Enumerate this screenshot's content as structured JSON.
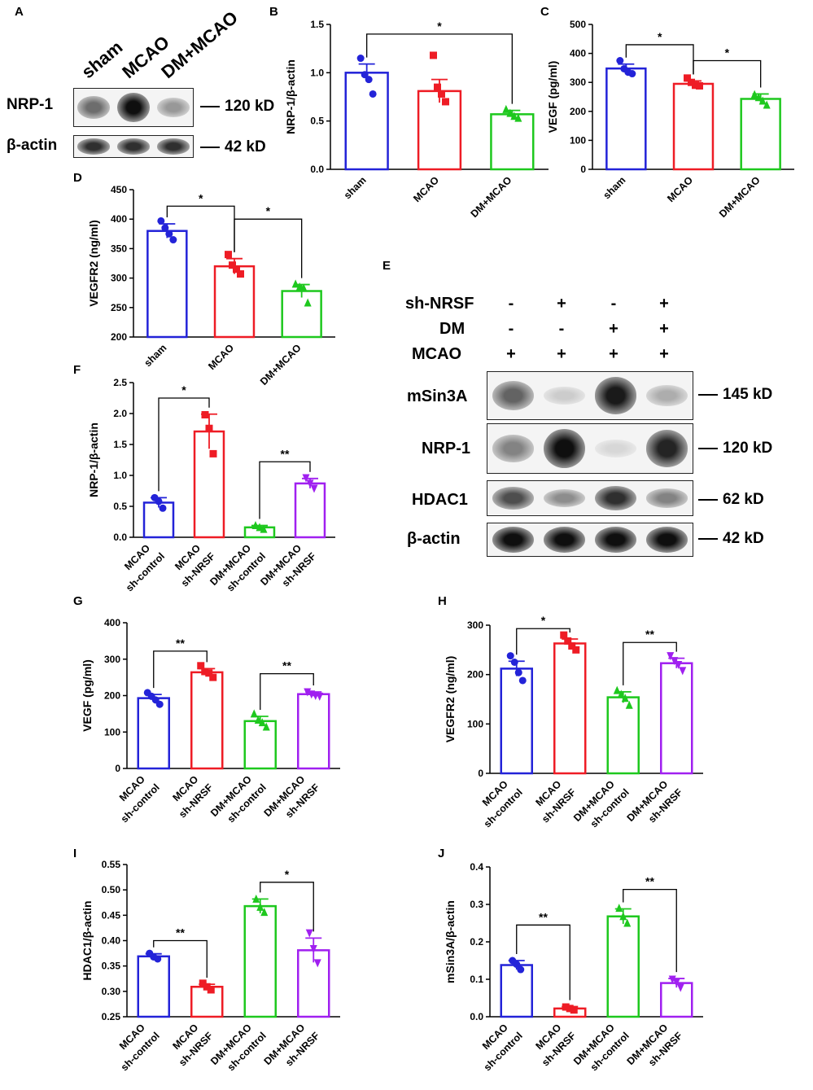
{
  "panel_letters": {
    "A": "A",
    "B": "B",
    "C": "C",
    "D": "D",
    "E": "E",
    "F": "F",
    "G": "G",
    "H": "H",
    "I": "I",
    "J": "J"
  },
  "panel_A": {
    "lanes": [
      "sham",
      "MCAO",
      "DM+MCAO"
    ],
    "rows": [
      {
        "label": "NRP-1",
        "size": "120 kD",
        "bands": [
          0.55,
          1.0,
          0.35
        ]
      },
      {
        "label": "β-actin",
        "size": "42 kD",
        "bands": [
          0.85,
          0.85,
          0.85
        ]
      }
    ]
  },
  "panel_E": {
    "conditions": [
      {
        "label": "sh-NRSF",
        "signs": [
          "-",
          "+",
          "-",
          "+"
        ]
      },
      {
        "label": "DM",
        "signs": [
          "-",
          "-",
          "+",
          "+"
        ]
      },
      {
        "label": "MCAO",
        "signs": [
          "+",
          "+",
          "+",
          "+"
        ]
      }
    ],
    "rows": [
      {
        "label": "mSin3A",
        "size": "145 kD",
        "bands": [
          0.6,
          0.1,
          0.95,
          0.25
        ]
      },
      {
        "label": "NRP-1",
        "size": "120 kD",
        "bands": [
          0.45,
          1.0,
          0.05,
          0.9
        ]
      },
      {
        "label": "HDAC1",
        "size": "62 kD",
        "bands": [
          0.7,
          0.4,
          0.85,
          0.45
        ]
      },
      {
        "label": "β-actin",
        "size": "42 kD",
        "bands": [
          1.0,
          1.0,
          1.0,
          1.0
        ]
      }
    ]
  },
  "colors": {
    "blue": "#2323d8",
    "red": "#ee1c25",
    "green": "#1ec81e",
    "purple": "#a020f0"
  },
  "chart_data": [
    {
      "id": "B",
      "type": "bar",
      "ylabel": "NRP-1/β-actin",
      "ylim": [
        0,
        1.5
      ],
      "yticks": [
        "0.0",
        "0.5",
        "1.0",
        "1.5"
      ],
      "categories": [
        [
          "sham"
        ],
        [
          "MCAO"
        ],
        [
          "DM+MCAO"
        ]
      ],
      "colors": [
        "blue",
        "red",
        "green"
      ],
      "markers": [
        "circle",
        "square",
        "triangle"
      ],
      "values": [
        1.0,
        0.81,
        0.57
      ],
      "errors": [
        0.09,
        0.12,
        0.04
      ],
      "points": [
        [
          1.15,
          0.98,
          0.93,
          0.78
        ],
        [
          1.18,
          0.85,
          0.78,
          0.7
        ],
        [
          0.62,
          0.58,
          0.55,
          0.53
        ]
      ],
      "sig": [
        {
          "from": 0,
          "to": 2,
          "label": "*",
          "y": 1.4
        }
      ]
    },
    {
      "id": "C",
      "type": "bar",
      "ylabel": "VEGF (pg/ml)",
      "ylim": [
        0,
        500
      ],
      "yticks": [
        "0",
        "100",
        "200",
        "300",
        "400",
        "500"
      ],
      "categories": [
        [
          "sham"
        ],
        [
          "MCAO"
        ],
        [
          "DM+MCAO"
        ]
      ],
      "colors": [
        "blue",
        "red",
        "green"
      ],
      "markers": [
        "circle",
        "square",
        "triangle"
      ],
      "values": [
        348,
        295,
        243
      ],
      "errors": [
        15,
        10,
        17
      ],
      "points": [
        [
          375,
          347,
          335,
          330
        ],
        [
          315,
          300,
          290,
          288
        ],
        [
          258,
          248,
          236,
          222
        ]
      ],
      "sig": [
        {
          "from": 0,
          "to": 1,
          "label": "*",
          "y": 430
        },
        {
          "from": 1,
          "to": 2,
          "label": "*",
          "y": 375
        }
      ]
    },
    {
      "id": "D",
      "type": "bar",
      "ylabel": "VEGFR2 (ng/ml)",
      "ylim": [
        200,
        450
      ],
      "yticks": [
        "200",
        "250",
        "300",
        "350",
        "400",
        "450"
      ],
      "categories": [
        [
          "sham"
        ],
        [
          "MCAO"
        ],
        [
          "DM+MCAO"
        ]
      ],
      "colors": [
        "blue",
        "red",
        "green"
      ],
      "markers": [
        "circle",
        "square",
        "triangle"
      ],
      "values": [
        380,
        320,
        278
      ],
      "errors": [
        12,
        13,
        11
      ],
      "points": [
        [
          397,
          385,
          375,
          365
        ],
        [
          340,
          322,
          315,
          307
        ],
        [
          290,
          285,
          283,
          258
        ]
      ],
      "sig": [
        {
          "from": 0,
          "to": 1,
          "label": "*",
          "y": 422
        },
        {
          "from": 1,
          "to": 2,
          "label": "*",
          "y": 400
        }
      ]
    },
    {
      "id": "F",
      "type": "bar",
      "ylabel": "NRP-1/β-actin",
      "ylim": [
        0,
        2.5
      ],
      "yticks": [
        "0.0",
        "0.5",
        "1.0",
        "1.5",
        "2.0",
        "2.5"
      ],
      "categories": [
        [
          "MCAO",
          "sh-control"
        ],
        [
          "MCAO",
          "sh-NRSF"
        ],
        [
          "DM+MCAO",
          "sh-control"
        ],
        [
          "DM+MCAO",
          "sh-NRSF"
        ]
      ],
      "colors": [
        "blue",
        "red",
        "green",
        "purple"
      ],
      "markers": [
        "circle",
        "square",
        "triangle",
        "invtriangle"
      ],
      "values": [
        0.56,
        1.71,
        0.16,
        0.87
      ],
      "errors": [
        0.08,
        0.28,
        0.03,
        0.08
      ],
      "points": [
        [
          0.64,
          0.58,
          0.47
        ],
        [
          1.98,
          1.76,
          1.35
        ],
        [
          0.19,
          0.16,
          0.13
        ],
        [
          0.96,
          0.87,
          0.79
        ]
      ],
      "sig": [
        {
          "from": 0,
          "to": 1,
          "label": "*",
          "y": 2.25
        },
        {
          "from": 2,
          "to": 3,
          "label": "**",
          "y": 1.22
        }
      ]
    },
    {
      "id": "G",
      "type": "bar",
      "ylabel": "VEGF (pg/ml)",
      "ylim": [
        0,
        400
      ],
      "yticks": [
        "0",
        "100",
        "200",
        "300",
        "400"
      ],
      "categories": [
        [
          "MCAO",
          "sh-control"
        ],
        [
          "MCAO",
          "sh-NRSF"
        ],
        [
          "DM+MCAO",
          "sh-control"
        ],
        [
          "DM+MCAO",
          "sh-NRSF"
        ]
      ],
      "colors": [
        "blue",
        "red",
        "green",
        "purple"
      ],
      "markers": [
        "circle",
        "square",
        "triangle",
        "invtriangle"
      ],
      "values": [
        193,
        264,
        130,
        204
      ],
      "errors": [
        10,
        10,
        13,
        6
      ],
      "points": [
        [
          208,
          198,
          188,
          176
        ],
        [
          282,
          266,
          262,
          250
        ],
        [
          150,
          133,
          126,
          114
        ],
        [
          210,
          204,
          200,
          198
        ]
      ],
      "sig": [
        {
          "from": 0,
          "to": 1,
          "label": "**",
          "y": 322
        },
        {
          "from": 2,
          "to": 3,
          "label": "**",
          "y": 260
        }
      ]
    },
    {
      "id": "H",
      "type": "bar",
      "ylabel": "VEGFR2 (ng/ml)",
      "ylim": [
        0,
        300
      ],
      "yticks": [
        "0",
        "100",
        "200",
        "300"
      ],
      "categories": [
        [
          "MCAO",
          "sh-control"
        ],
        [
          "MCAO",
          "sh-NRSF"
        ],
        [
          "DM+MCAO",
          "sh-control"
        ],
        [
          "DM+MCAO",
          "sh-NRSF"
        ]
      ],
      "colors": [
        "blue",
        "red",
        "green",
        "purple"
      ],
      "markers": [
        "circle",
        "square",
        "triangle",
        "invtriangle"
      ],
      "values": [
        212,
        263,
        154,
        223
      ],
      "errors": [
        15,
        9,
        11,
        10
      ],
      "points": [
        [
          238,
          225,
          204,
          188
        ],
        [
          280,
          268,
          258,
          250
        ],
        [
          168,
          160,
          152,
          138
        ],
        [
          238,
          228,
          220,
          208
        ]
      ],
      "sig": [
        {
          "from": 0,
          "to": 1,
          "label": "*",
          "y": 293
        },
        {
          "from": 2,
          "to": 3,
          "label": "**",
          "y": 265
        }
      ]
    },
    {
      "id": "I",
      "type": "bar",
      "ylabel": "HDAC1/β-actin",
      "ylim": [
        0.25,
        0.55
      ],
      "yticks": [
        "0.25",
        "0.30",
        "0.35",
        "0.40",
        "0.45",
        "0.50",
        "0.55"
      ],
      "categories": [
        [
          "MCAO",
          "sh-control"
        ],
        [
          "MCAO",
          "sh-NRSF"
        ],
        [
          "DM+MCAO",
          "sh-control"
        ],
        [
          "DM+MCAO",
          "sh-NRSF"
        ]
      ],
      "colors": [
        "blue",
        "red",
        "green",
        "purple"
      ],
      "markers": [
        "circle",
        "square",
        "triangle",
        "invtriangle"
      ],
      "values": [
        0.369,
        0.309,
        0.468,
        0.381
      ],
      "errors": [
        0.005,
        0.005,
        0.014,
        0.024
      ],
      "points": [
        [
          0.375,
          0.368,
          0.364
        ],
        [
          0.316,
          0.309,
          0.303
        ],
        [
          0.482,
          0.466,
          0.456
        ],
        [
          0.415,
          0.384,
          0.356
        ]
      ],
      "sig": [
        {
          "from": 0,
          "to": 1,
          "label": "**",
          "y": 0.4
        },
        {
          "from": 2,
          "to": 3,
          "label": "*",
          "y": 0.515
        }
      ]
    },
    {
      "id": "J",
      "type": "bar",
      "ylabel": "mSin3A/β-actin",
      "ylim": [
        0,
        0.4
      ],
      "yticks": [
        "0.0",
        "0.1",
        "0.2",
        "0.3",
        "0.4"
      ],
      "categories": [
        [
          "MCAO",
          "sh-control"
        ],
        [
          "MCAO",
          "sh-NRSF"
        ],
        [
          "DM+MCAO",
          "sh-control"
        ],
        [
          "DM+MCAO",
          "sh-NRSF"
        ]
      ],
      "colors": [
        "blue",
        "red",
        "green",
        "purple"
      ],
      "markers": [
        "circle",
        "square",
        "triangle",
        "invtriangle"
      ],
      "values": [
        0.138,
        0.022,
        0.268,
        0.09
      ],
      "errors": [
        0.012,
        0.005,
        0.02,
        0.012
      ],
      "points": [
        [
          0.15,
          0.14,
          0.126
        ],
        [
          0.026,
          0.022,
          0.018
        ],
        [
          0.29,
          0.268,
          0.25
        ],
        [
          0.1,
          0.092,
          0.078
        ]
      ],
      "sig": [
        {
          "from": 0,
          "to": 1,
          "label": "**",
          "y": 0.245
        },
        {
          "from": 2,
          "to": 3,
          "label": "**",
          "y": 0.34
        }
      ]
    }
  ]
}
